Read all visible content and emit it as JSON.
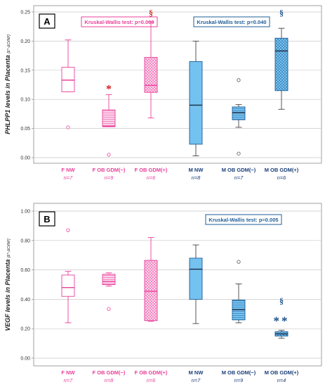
{
  "colors": {
    "female": "#e8419a",
    "female_fill": "#fbd3ea",
    "male_stroke": "#1f5f99",
    "male_fill": "#74c2f0",
    "male_label": "#1a3f7a",
    "asterisk": "#d42020",
    "section_sign": "#c9302c",
    "male_sig": "#1a4f8a"
  },
  "chart_data": [
    {
      "type": "box",
      "panel": "A",
      "ylabel": "PHLPP1 levels in Placenta",
      "ylabel_unit": "[E^-ΔCt/NF]",
      "ylim": [
        0,
        0.25
      ],
      "yticks": [
        "0.00",
        "0.05",
        "0.10",
        "0.15",
        "0.20",
        "0.25"
      ],
      "grid": true,
      "annotations": {
        "female_test": "Kruskal-Wallis test: p=0.009",
        "male_test": "Kruskal-Wallis test: p=0.040"
      },
      "groups": [
        {
          "label": "F NW",
          "n": "n=7",
          "sex": "F",
          "pattern": "none",
          "whisker_low": 0.113,
          "q1": 0.113,
          "median": 0.133,
          "q3": 0.155,
          "whisker_high": 0.202,
          "outliers": [
            0.052
          ],
          "mark": ""
        },
        {
          "label": "F OB GDM(−)",
          "n": "n=9",
          "sex": "F",
          "pattern": "lines",
          "whisker_low": 0.053,
          "q1": 0.053,
          "median": 0.054,
          "q3": 0.082,
          "whisker_high": 0.108,
          "outliers": [
            0.005
          ],
          "mark": "*"
        },
        {
          "label": "F OB GDM(+)",
          "n": "n=6",
          "sex": "F",
          "pattern": "cross",
          "whisker_low": 0.068,
          "q1": 0.112,
          "median": 0.124,
          "q3": 0.172,
          "whisker_high": 0.233,
          "outliers": [],
          "mark": "§"
        },
        {
          "label": "M NW",
          "n": "n=8",
          "sex": "M",
          "pattern": "none",
          "whisker_low": 0.003,
          "q1": 0.023,
          "median": 0.09,
          "q3": 0.165,
          "whisker_high": 0.2,
          "outliers": [],
          "mark": ""
        },
        {
          "label": "M OB GDM(−)",
          "n": "n=7",
          "sex": "M",
          "pattern": "lines",
          "whisker_low": 0.052,
          "q1": 0.065,
          "median": 0.077,
          "q3": 0.087,
          "whisker_high": 0.091,
          "outliers": [
            0.133,
            0.007
          ],
          "mark": ""
        },
        {
          "label": "M OB GDM(+)",
          "n": "n=6",
          "sex": "M",
          "pattern": "cross",
          "whisker_low": 0.083,
          "q1": 0.115,
          "median": 0.183,
          "q3": 0.205,
          "whisker_high": 0.222,
          "outliers": [],
          "mark": "§"
        }
      ]
    },
    {
      "type": "box",
      "panel": "B",
      "ylabel": "VEGF levels in Placenta",
      "ylabel_unit": "[E^-ΔCt/NF]",
      "ylim": [
        0,
        1.0
      ],
      "yticks": [
        "0.00",
        "0.20",
        "0.40",
        "0.60",
        "0.80",
        "1.00"
      ],
      "grid": true,
      "annotations": {
        "male_test": "Kruskal-Wallis test: p=0.005"
      },
      "groups": [
        {
          "label": "F NW",
          "n": "n=7",
          "sex": "F",
          "pattern": "none",
          "whisker_low": 0.24,
          "q1": 0.42,
          "median": 0.48,
          "q3": 0.565,
          "whisker_high": 0.59,
          "outliers": [
            0.87
          ],
          "mark": ""
        },
        {
          "label": "F OB GDM(−)",
          "n": "n=8",
          "sex": "F",
          "pattern": "lines",
          "whisker_low": 0.49,
          "q1": 0.5,
          "median": 0.52,
          "q3": 0.57,
          "whisker_high": 0.58,
          "outliers": [
            0.335
          ],
          "mark": ""
        },
        {
          "label": "F OB GDM(+)",
          "n": "n=6",
          "sex": "F",
          "pattern": "cross",
          "whisker_low": 0.25,
          "q1": 0.255,
          "median": 0.455,
          "q3": 0.665,
          "whisker_high": 0.82,
          "outliers": [],
          "mark": ""
        },
        {
          "label": "M NW",
          "n": "n=7",
          "sex": "M",
          "pattern": "none",
          "whisker_low": 0.235,
          "q1": 0.4,
          "median": 0.605,
          "q3": 0.68,
          "whisker_high": 0.77,
          "outliers": [],
          "mark": ""
        },
        {
          "label": "M OB GDM(−)",
          "n": "n=9",
          "sex": "M",
          "pattern": "lines",
          "whisker_low": 0.24,
          "q1": 0.26,
          "median": 0.33,
          "q3": 0.395,
          "whisker_high": 0.505,
          "outliers": [
            0.655
          ],
          "mark": ""
        },
        {
          "label": "M OB GDM(+)",
          "n": "n=4",
          "sex": "M",
          "pattern": "cross",
          "whisker_low": 0.135,
          "q1": 0.15,
          "median": 0.165,
          "q3": 0.18,
          "whisker_high": 0.19,
          "outliers": [],
          "mark": "§ **"
        }
      ]
    }
  ]
}
